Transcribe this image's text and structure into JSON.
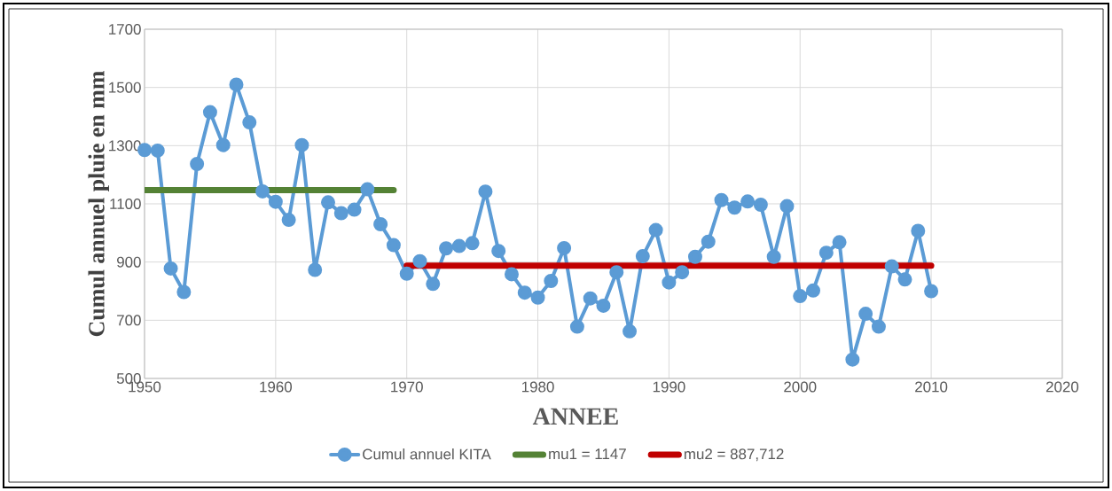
{
  "chart_data": {
    "type": "line",
    "xlabel": "ANNEE",
    "ylabel": "Cumul annuel pluie en mm",
    "xlim": [
      1950,
      2020
    ],
    "xticks": [
      1950,
      1960,
      1970,
      1980,
      1990,
      2000,
      2010,
      2020
    ],
    "ylim": [
      500,
      1700
    ],
    "yticks": [
      500,
      700,
      900,
      1100,
      1300,
      1500,
      1700
    ],
    "grid": true,
    "legend": "bottom",
    "series": [
      {
        "name": "Cumul annuel KITA",
        "color": "#5b9bd5",
        "marker": "circle",
        "x": [
          1950,
          1951,
          1952,
          1953,
          1954,
          1955,
          1956,
          1957,
          1958,
          1959,
          1960,
          1961,
          1962,
          1963,
          1964,
          1965,
          1966,
          1967,
          1968,
          1969,
          1970,
          1971,
          1972,
          1973,
          1974,
          1975,
          1976,
          1977,
          1978,
          1979,
          1980,
          1981,
          1982,
          1983,
          1984,
          1985,
          1986,
          1987,
          1988,
          1989,
          1990,
          1991,
          1992,
          1993,
          1994,
          1995,
          1996,
          1997,
          1998,
          1999,
          2000,
          2001,
          2002,
          2003,
          2004,
          2005,
          2006,
          2007,
          2008,
          2009,
          2010
        ],
        "values": [
          1285,
          1283,
          878,
          797,
          1237,
          1415,
          1302,
          1510,
          1380,
          1143,
          1107,
          1045,
          1302,
          873,
          1105,
          1068,
          1080,
          1150,
          1030,
          958,
          860,
          903,
          825,
          947,
          955,
          965,
          1142,
          938,
          858,
          795,
          778,
          835,
          948,
          678,
          775,
          750,
          865,
          662,
          920,
          1010,
          830,
          865,
          918,
          970,
          1113,
          1087,
          1108,
          1097,
          918,
          1092,
          783,
          802,
          932,
          968,
          565,
          722,
          678,
          885,
          840,
          1007,
          800
        ]
      },
      {
        "name": "mu1 = 1147",
        "color": "#548235",
        "marker": "none",
        "x": [
          1950,
          1969
        ],
        "values": [
          1147,
          1147
        ]
      },
      {
        "name": "mu2 = 887,712",
        "color": "#c00000",
        "marker": "none",
        "x": [
          1970,
          2010
        ],
        "values": [
          887.712,
          887.712
        ]
      }
    ]
  }
}
